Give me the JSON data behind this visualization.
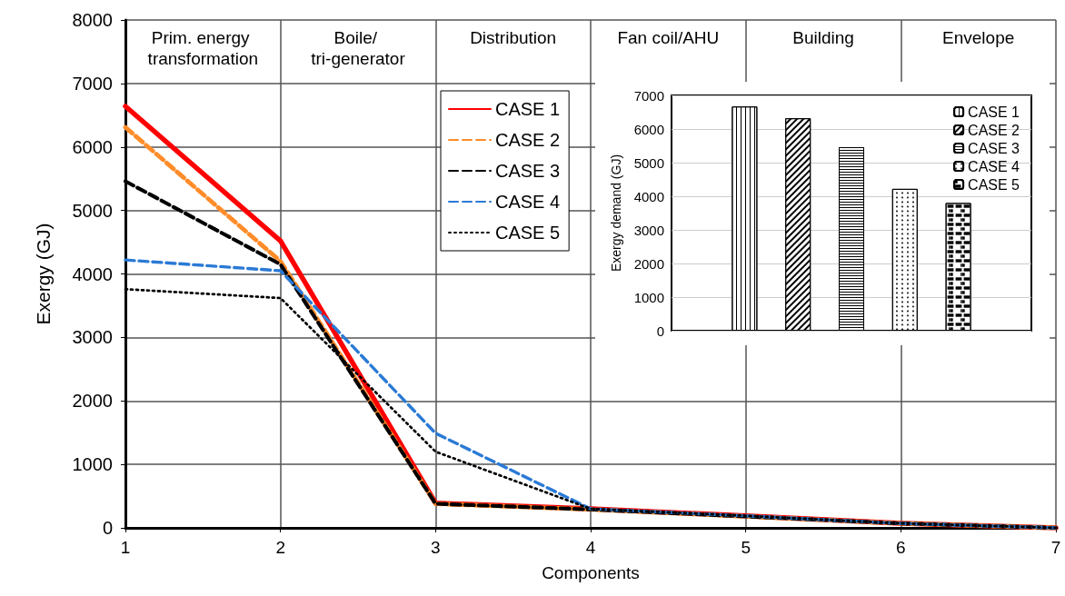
{
  "chart_data": [
    {
      "type": "line",
      "xlabel": "Components",
      "ylabel": "Exergy (GJ)",
      "x": [
        1,
        2,
        3,
        4,
        5,
        6,
        7
      ],
      "xlim": [
        1,
        7
      ],
      "xticks": [
        1,
        2,
        3,
        4,
        5,
        6,
        7
      ],
      "ylim": [
        0,
        8000
      ],
      "yticks": [
        0,
        1000,
        2000,
        3000,
        4000,
        5000,
        6000,
        7000,
        8000
      ],
      "grid": true,
      "legend": "top",
      "marker": "none",
      "annotations": [
        "Prim. energy transformation",
        "Boile/ tri-generator",
        "Distribution",
        "Fan coil/AHU",
        "Building",
        "Envelope"
      ],
      "series": [
        {
          "name": "CASE 1",
          "color": "#ff0000",
          "line_style": "solid",
          "values": [
            6640,
            4520,
            390,
            300,
            190,
            70,
            0
          ]
        },
        {
          "name": "CASE 2",
          "color": "#ff8c2a",
          "line_style": "dashed",
          "values": [
            6310,
            4200,
            380,
            290,
            180,
            70,
            0
          ]
        },
        {
          "name": "CASE 3",
          "color": "#000000",
          "line_style": "dashed",
          "values": [
            5460,
            4150,
            380,
            290,
            180,
            70,
            0
          ]
        },
        {
          "name": "CASE 4",
          "color": "#2a7ad5",
          "line_style": "dashed",
          "values": [
            4220,
            4050,
            1490,
            300,
            190,
            70,
            0
          ]
        },
        {
          "name": "CASE 5",
          "color": "#000000",
          "line_style": "dotted",
          "values": [
            3760,
            3620,
            1200,
            300,
            190,
            70,
            0
          ]
        }
      ]
    },
    {
      "type": "bar",
      "ylabel": "Exergy demand (GJ)",
      "categories": [
        null
      ],
      "ylim": [
        0,
        7000
      ],
      "yticks": [
        0,
        1000,
        2000,
        3000,
        4000,
        5000,
        6000,
        7000
      ],
      "grid": "y",
      "legend": "top right",
      "series": [
        {
          "name": "CASE 1",
          "color": "#ffffff",
          "values": [
            6670
          ]
        },
        {
          "name": "CASE 2",
          "color": "#ffffff",
          "values": [
            6320
          ]
        },
        {
          "name": "CASE 3",
          "color": "#ffffff",
          "values": [
            5460
          ]
        },
        {
          "name": "CASE 4",
          "color": "#ffffff",
          "values": [
            4220
          ]
        },
        {
          "name": "CASE 5",
          "color": "#ffffff",
          "values": [
            3800
          ]
        }
      ]
    }
  ]
}
